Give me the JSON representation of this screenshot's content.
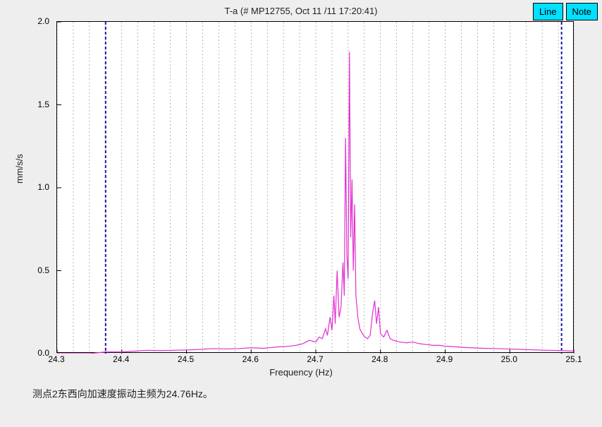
{
  "title": "T-a  (# MP12755, Oct 11 /11 17:20:41)",
  "buttons": {
    "line": "Line",
    "note": "Note"
  },
  "caption": "测点2东西向加速度振动主频为24.76Hz。",
  "chart": {
    "type": "line",
    "xlabel": "Frequency (Hz)",
    "ylabel": "mm/s/s",
    "xlim": [
      24.3,
      25.1
    ],
    "ylim": [
      0.0,
      2.0
    ],
    "xtick_step": 0.1,
    "ytick_step": 0.5,
    "xticks": [
      "24.3",
      "24.4",
      "24.5",
      "24.6",
      "24.7",
      "24.8",
      "24.9",
      "25.0",
      "25.1"
    ],
    "yticks": [
      "0.0",
      "0.5",
      "1.0",
      "1.5",
      "2.0"
    ],
    "background_color": "#ffffff",
    "page_background": "#eeeeee",
    "grid_minor_color": "#888888",
    "grid_minor_dash": "2,3",
    "axis_color": "#000000",
    "tick_fontsize": 12,
    "label_fontsize": 13,
    "title_fontsize": 13,
    "line_color": "#e030d0",
    "line_width": 1.2,
    "cursor_lines": {
      "color": "#1818b0",
      "width": 2,
      "dash": "4,3",
      "x_positions": [
        24.375,
        25.08
      ]
    },
    "minor_grid_x_step": 0.025,
    "series": [
      [
        24.3,
        0.0
      ],
      [
        24.325,
        0.0
      ],
      [
        24.35,
        0.0
      ],
      [
        24.375,
        0.01
      ],
      [
        24.4,
        0.01
      ],
      [
        24.42,
        0.015
      ],
      [
        24.44,
        0.02
      ],
      [
        24.46,
        0.018
      ],
      [
        24.48,
        0.02
      ],
      [
        24.5,
        0.022
      ],
      [
        24.52,
        0.025
      ],
      [
        24.54,
        0.03
      ],
      [
        24.56,
        0.028
      ],
      [
        24.58,
        0.03
      ],
      [
        24.6,
        0.035
      ],
      [
        24.62,
        0.032
      ],
      [
        24.64,
        0.04
      ],
      [
        24.66,
        0.045
      ],
      [
        24.67,
        0.05
      ],
      [
        24.68,
        0.06
      ],
      [
        24.69,
        0.08
      ],
      [
        24.7,
        0.07
      ],
      [
        24.705,
        0.1
      ],
      [
        24.71,
        0.09
      ],
      [
        24.715,
        0.15
      ],
      [
        24.718,
        0.11
      ],
      [
        24.722,
        0.22
      ],
      [
        24.725,
        0.14
      ],
      [
        24.728,
        0.35
      ],
      [
        24.73,
        0.18
      ],
      [
        24.733,
        0.5
      ],
      [
        24.736,
        0.22
      ],
      [
        24.739,
        0.28
      ],
      [
        24.742,
        0.55
      ],
      [
        24.744,
        0.35
      ],
      [
        24.746,
        1.3
      ],
      [
        24.748,
        0.6
      ],
      [
        24.75,
        0.45
      ],
      [
        24.752,
        1.82
      ],
      [
        24.754,
        0.7
      ],
      [
        24.756,
        1.05
      ],
      [
        24.758,
        0.5
      ],
      [
        24.76,
        0.9
      ],
      [
        24.762,
        0.35
      ],
      [
        24.765,
        0.22
      ],
      [
        24.768,
        0.15
      ],
      [
        24.772,
        0.12
      ],
      [
        24.776,
        0.1
      ],
      [
        24.78,
        0.09
      ],
      [
        24.784,
        0.11
      ],
      [
        24.788,
        0.25
      ],
      [
        24.791,
        0.32
      ],
      [
        24.794,
        0.18
      ],
      [
        24.797,
        0.28
      ],
      [
        24.8,
        0.12
      ],
      [
        24.805,
        0.1
      ],
      [
        24.81,
        0.14
      ],
      [
        24.815,
        0.09
      ],
      [
        24.82,
        0.08
      ],
      [
        24.83,
        0.07
      ],
      [
        24.84,
        0.065
      ],
      [
        24.85,
        0.07
      ],
      [
        24.86,
        0.06
      ],
      [
        24.87,
        0.055
      ],
      [
        24.88,
        0.05
      ],
      [
        24.89,
        0.05
      ],
      [
        24.9,
        0.045
      ],
      [
        24.92,
        0.04
      ],
      [
        24.94,
        0.035
      ],
      [
        24.96,
        0.032
      ],
      [
        24.98,
        0.03
      ],
      [
        25.0,
        0.028
      ],
      [
        25.02,
        0.025
      ],
      [
        25.04,
        0.022
      ],
      [
        25.06,
        0.02
      ],
      [
        25.08,
        0.018
      ],
      [
        25.1,
        0.015
      ]
    ]
  }
}
